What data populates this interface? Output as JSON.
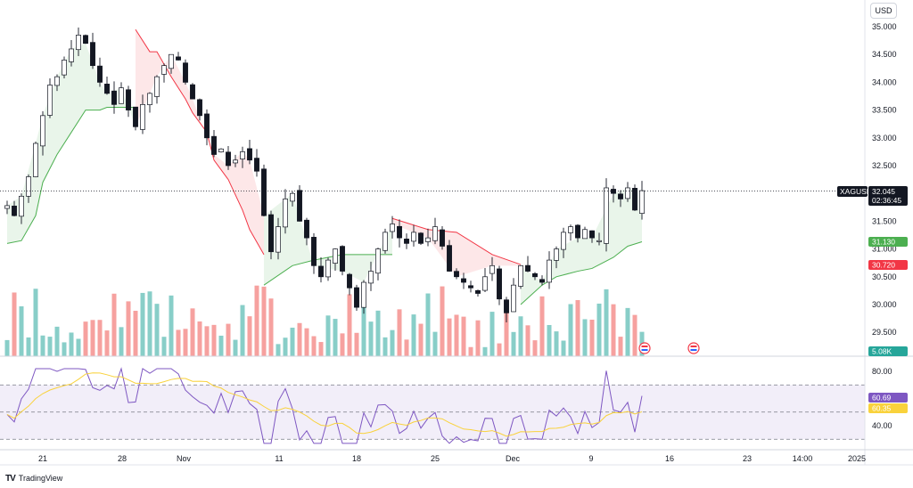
{
  "currency_label": "USD",
  "brand": {
    "logo_text": "TV",
    "name": "TradingView"
  },
  "symbol_badge": {
    "symbol": "XAGUSD",
    "price": "32.045",
    "countdown": "02:36:45",
    "color": "#131722"
  },
  "supertrend_badges": [
    {
      "value": "31.130",
      "color": "#4caf50"
    },
    {
      "value": "30.720",
      "color": "#f23645"
    }
  ],
  "volume_badge": {
    "value": "5.08K",
    "color": "#26a69a"
  },
  "rsi_badges": [
    {
      "value": "60.69",
      "color": "#7e57c2"
    },
    {
      "value": "60.35",
      "color": "#f9d23c"
    }
  ],
  "colors": {
    "up": "#26a69a",
    "down": "#ef5350",
    "st_up": "#4caf50",
    "st_down": "#f23645",
    "rsi": "#7e57c2",
    "rsi_ma": "#f9d23c"
  },
  "chart_data": {
    "type": "candlestick",
    "price_axis": {
      "ticks": [
        "35.000",
        "34.500",
        "34.000",
        "33.500",
        "33.000",
        "32.500",
        "32.000",
        "31.500",
        "31.000",
        "30.500",
        "30.000",
        "29.500"
      ],
      "range": [
        29.15,
        35.4
      ]
    },
    "rsi_axis": {
      "ticks": [
        "80.00",
        "40.00"
      ],
      "levels": [
        70,
        30
      ],
      "range": [
        20,
        93
      ]
    },
    "x_axis_labels": [
      "21",
      "28",
      "Nov",
      "11",
      "18",
      "25",
      "Dec",
      "9",
      "16",
      "23",
      "14:00",
      "2025"
    ],
    "last_price": 32.045,
    "candles_4h_close": [
      31.78,
      31.6,
      31.95,
      32.3,
      32.9,
      33.4,
      33.95,
      34.1,
      34.4,
      34.6,
      34.85,
      34.7,
      34.3,
      34.0,
      33.8,
      33.6,
      33.9,
      33.5,
      33.2,
      33.6,
      33.8,
      34.1,
      34.3,
      34.5,
      34.4,
      34.0,
      33.7,
      33.4,
      33.0,
      32.7,
      32.8,
      32.5,
      32.6,
      32.75,
      32.6,
      32.4,
      31.6,
      30.95,
      31.4,
      31.9,
      32.0,
      31.5,
      31.2,
      30.7,
      30.5,
      30.8,
      31.0,
      30.6,
      30.3,
      29.95,
      30.4,
      30.6,
      31.0,
      31.3,
      31.45,
      31.2,
      31.1,
      31.3,
      31.1,
      31.2,
      31.4,
      31.05,
      30.6,
      30.5,
      30.4,
      30.3,
      30.2,
      30.5,
      30.7,
      30.1,
      29.85,
      30.35,
      30.7,
      30.6,
      30.5,
      30.4,
      30.8,
      31.0,
      31.3,
      31.4,
      31.2,
      31.35,
      31.2,
      31.15,
      32.1,
      32.0,
      31.9,
      32.1,
      31.7,
      32.05
    ],
    "supertrend": [
      {
        "direction": "up",
        "values": [
          31.1,
          31.15,
          31.6,
          32.2,
          32.7,
          33.1,
          33.5,
          33.5,
          33.55,
          33.55,
          33.55
        ]
      },
      {
        "direction": "down",
        "values": [
          34.95,
          34.55,
          34.55,
          34.1,
          33.7,
          33.45,
          33.1,
          32.6,
          32.25,
          31.7,
          31.35,
          30.9
        ]
      },
      {
        "direction": "up",
        "values": [
          30.35,
          30.7,
          30.8,
          30.9,
          30.9,
          30.9
        ]
      },
      {
        "direction": "down",
        "values": [
          31.55,
          31.35,
          31.3,
          30.9,
          30.72
        ]
      },
      {
        "direction": "up",
        "values": [
          30.0,
          30.35,
          30.5,
          30.6,
          30.65,
          30.85,
          31.05,
          31.13
        ]
      }
    ],
    "volume_last": "5.08K",
    "rsi_last": 60.69,
    "rsi_ma_last": 60.35
  }
}
